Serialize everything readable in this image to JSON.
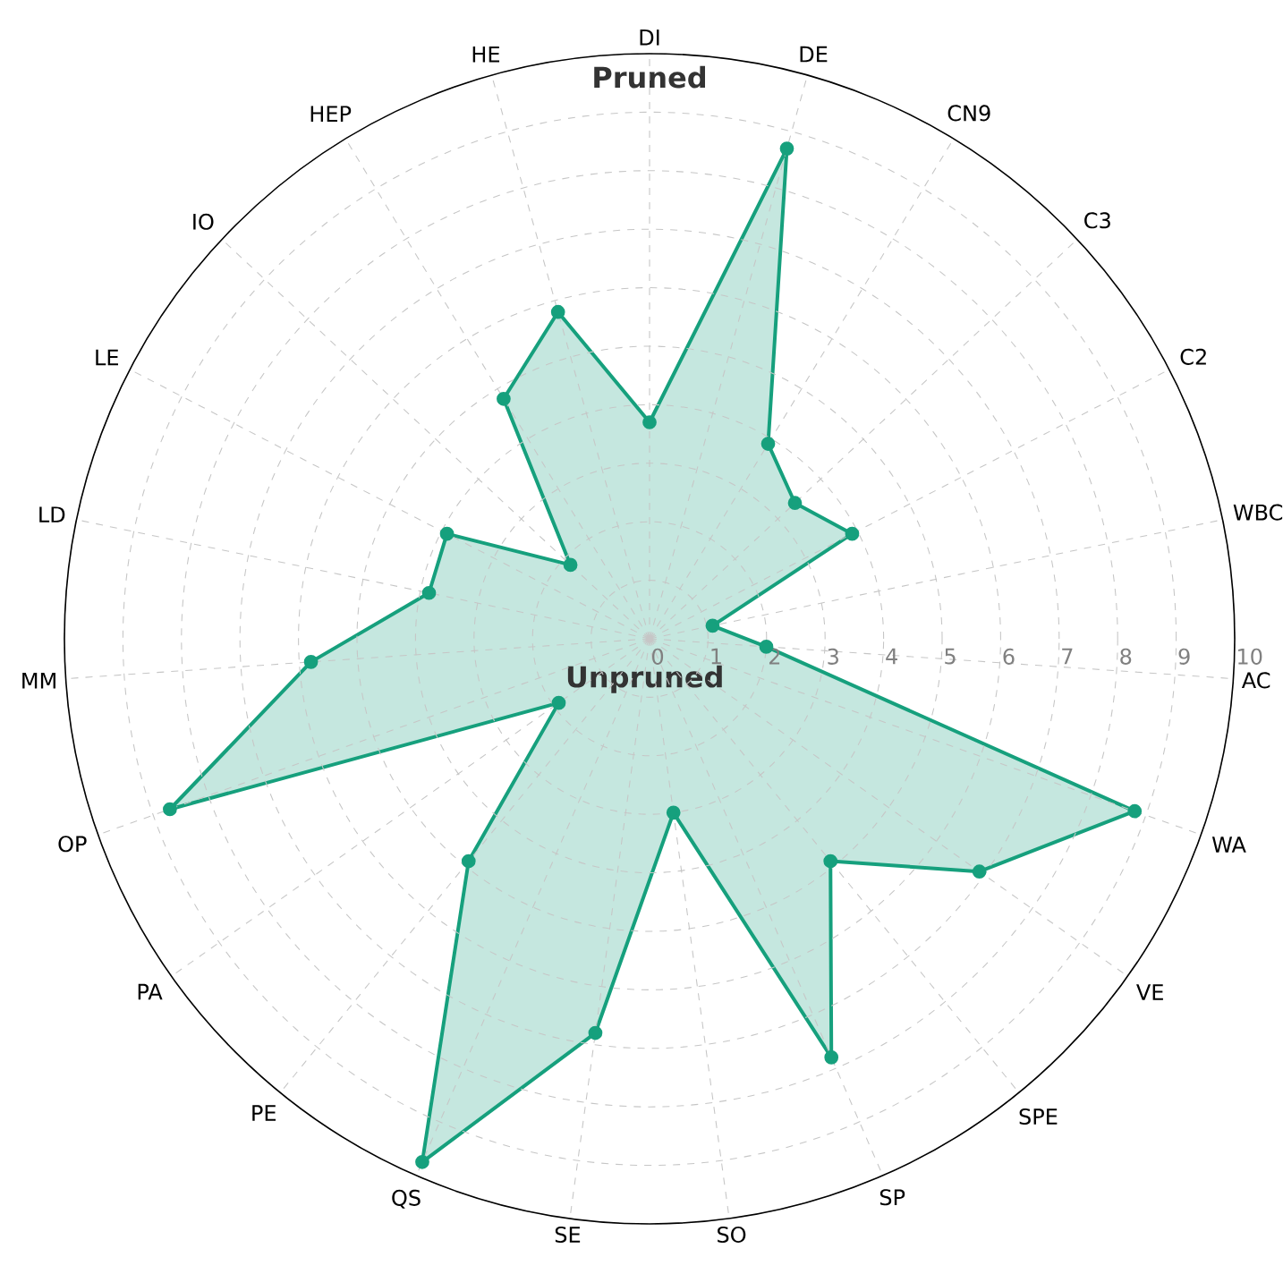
{
  "chart_data": {
    "type": "radar",
    "categories": [
      "DI",
      "DE",
      "CN9",
      "C3",
      "C2",
      "WBC",
      "AC",
      "WA",
      "VE",
      "SPE",
      "SP",
      "SO",
      "SE",
      "QS",
      "PE",
      "PA",
      "OP",
      "MM",
      "LD",
      "LE",
      "IO",
      "HEP",
      "HE"
    ],
    "series": [
      {
        "color": "#16a07d",
        "values": [
          3.7,
          8.7,
          3.9,
          3.4,
          3.9,
          1.1,
          2.0,
          8.8,
          6.9,
          4.9,
          7.8,
          3.0,
          6.8,
          9.75,
          4.9,
          1.9,
          8.7,
          5.8,
          3.85,
          3.9,
          1.85,
          4.8,
          5.8
        ]
      }
    ],
    "ylim": [
      0,
      10
    ],
    "yticks": [
      0,
      1,
      2,
      3,
      4,
      5,
      6,
      7,
      8,
      9,
      10
    ],
    "grid": true,
    "marker": "circle",
    "line_style": "solid",
    "annotations": [
      "Pruned",
      "Unpruned"
    ]
  }
}
